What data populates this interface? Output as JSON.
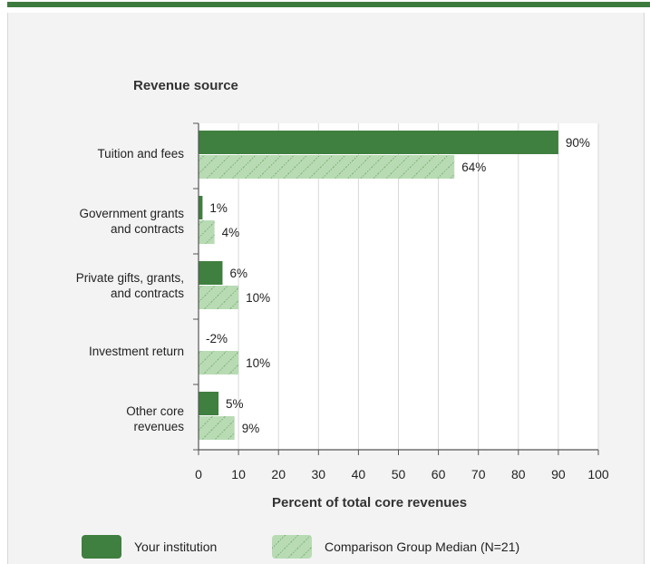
{
  "chart_data": {
    "type": "bar",
    "orientation": "horizontal",
    "title": "Revenue source",
    "xlabel": "Percent of total core revenues",
    "xlim": [
      0,
      100
    ],
    "xticks": [
      "0",
      "10",
      "20",
      "30",
      "40",
      "50",
      "60",
      "70",
      "80",
      "90",
      "100"
    ],
    "grid": true,
    "categories": [
      [
        "Tuition and fees"
      ],
      [
        "Government grants",
        "and contracts"
      ],
      [
        "Private gifts, grants,",
        "and contracts"
      ],
      [
        "Investment return"
      ],
      [
        "Other core",
        "revenues"
      ]
    ],
    "series": [
      {
        "name": "Your institution",
        "values": [
          90,
          1,
          6,
          -2,
          5
        ],
        "labels": [
          "90%",
          "1%",
          "6%",
          "-2%",
          "5%"
        ],
        "color": "#3f7f3f"
      },
      {
        "name": "Comparison Group Median (N=21)",
        "values": [
          64,
          4,
          10,
          10,
          9
        ],
        "labels": [
          "64%",
          "4%",
          "10%",
          "10%",
          "9%"
        ],
        "color": "#b8dbb4",
        "pattern": "hatched"
      }
    ],
    "legend_position": "bottom"
  },
  "colors": {
    "accent": "#3d7a3d",
    "institution": "#3f7f3f",
    "comparison": "#b8dbb4"
  }
}
